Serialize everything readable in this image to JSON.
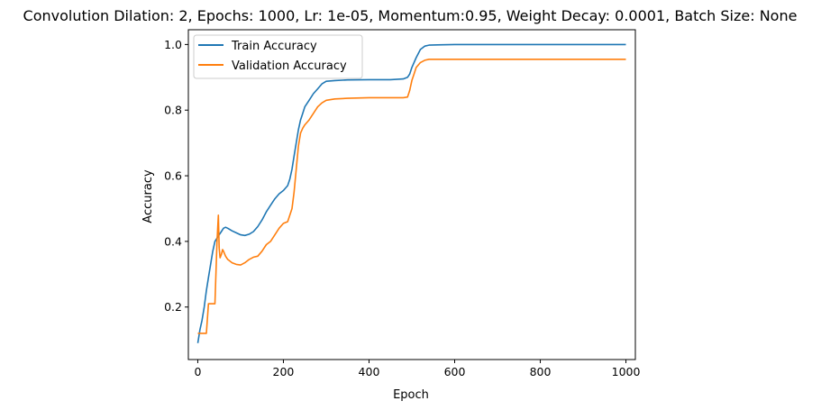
{
  "chart_data": {
    "type": "line",
    "title": "Convolution Dilation: 2, Epochs: 1000, Lr: 1e-05, Momentum:0.95, Weight Decay: 0.0001, Batch Size: None",
    "xlabel": "Epoch",
    "ylabel": "Accuracy",
    "xlim": [
      -22,
      1022
    ],
    "ylim": [
      0.04,
      1.045
    ],
    "xticks": [
      0,
      200,
      400,
      600,
      800,
      1000
    ],
    "yticks": [
      0.2,
      0.4,
      0.6,
      0.8,
      1.0
    ],
    "xtick_labels": [
      "0",
      "200",
      "400",
      "600",
      "800",
      "1000"
    ],
    "ytick_labels": [
      "0.2",
      "0.4",
      "0.6",
      "0.8",
      "1.0"
    ],
    "grid": false,
    "legend_position": "upper-left",
    "series": [
      {
        "name": "Train Accuracy",
        "color": "#1f77b4",
        "x": [
          0,
          5,
          10,
          15,
          20,
          25,
          30,
          35,
          40,
          45,
          50,
          55,
          60,
          65,
          70,
          80,
          90,
          100,
          110,
          120,
          130,
          140,
          150,
          160,
          170,
          180,
          190,
          200,
          210,
          215,
          220,
          225,
          230,
          235,
          240,
          245,
          250,
          260,
          270,
          280,
          290,
          300,
          320,
          350,
          400,
          450,
          480,
          490,
          495,
          500,
          510,
          520,
          530,
          540,
          560,
          600,
          700,
          800,
          900,
          1000
        ],
        "y": [
          0.09,
          0.13,
          0.16,
          0.2,
          0.25,
          0.29,
          0.33,
          0.37,
          0.4,
          0.41,
          0.42,
          0.43,
          0.44,
          0.443,
          0.44,
          0.432,
          0.426,
          0.42,
          0.418,
          0.422,
          0.43,
          0.445,
          0.465,
          0.49,
          0.51,
          0.53,
          0.545,
          0.555,
          0.57,
          0.59,
          0.62,
          0.66,
          0.7,
          0.74,
          0.77,
          0.79,
          0.81,
          0.83,
          0.85,
          0.865,
          0.88,
          0.888,
          0.89,
          0.892,
          0.893,
          0.893,
          0.895,
          0.9,
          0.91,
          0.93,
          0.96,
          0.985,
          0.995,
          0.998,
          0.999,
          1.0,
          1.0,
          1.0,
          1.0,
          1.0
        ]
      },
      {
        "name": "Validation Accuracy",
        "color": "#ff7f0e",
        "x": [
          0,
          5,
          10,
          20,
          25,
          30,
          35,
          40,
          45,
          48,
          50,
          52,
          55,
          58,
          60,
          65,
          70,
          80,
          90,
          100,
          110,
          120,
          130,
          140,
          150,
          160,
          170,
          180,
          190,
          200,
          210,
          220,
          225,
          230,
          235,
          240,
          245,
          250,
          260,
          270,
          280,
          290,
          300,
          320,
          350,
          400,
          450,
          480,
          490,
          495,
          500,
          505,
          510,
          520,
          530,
          540,
          560,
          600,
          700,
          800,
          900,
          1000
        ],
        "y": [
          0.12,
          0.12,
          0.12,
          0.12,
          0.21,
          0.21,
          0.21,
          0.21,
          0.4,
          0.48,
          0.38,
          0.35,
          0.36,
          0.375,
          0.37,
          0.355,
          0.345,
          0.335,
          0.33,
          0.328,
          0.335,
          0.345,
          0.352,
          0.355,
          0.37,
          0.39,
          0.4,
          0.42,
          0.44,
          0.455,
          0.46,
          0.5,
          0.55,
          0.62,
          0.69,
          0.73,
          0.745,
          0.755,
          0.77,
          0.79,
          0.81,
          0.822,
          0.83,
          0.834,
          0.836,
          0.838,
          0.838,
          0.838,
          0.84,
          0.86,
          0.89,
          0.91,
          0.93,
          0.945,
          0.952,
          0.955,
          0.955,
          0.955,
          0.955,
          0.955,
          0.955,
          0.955
        ]
      }
    ]
  }
}
